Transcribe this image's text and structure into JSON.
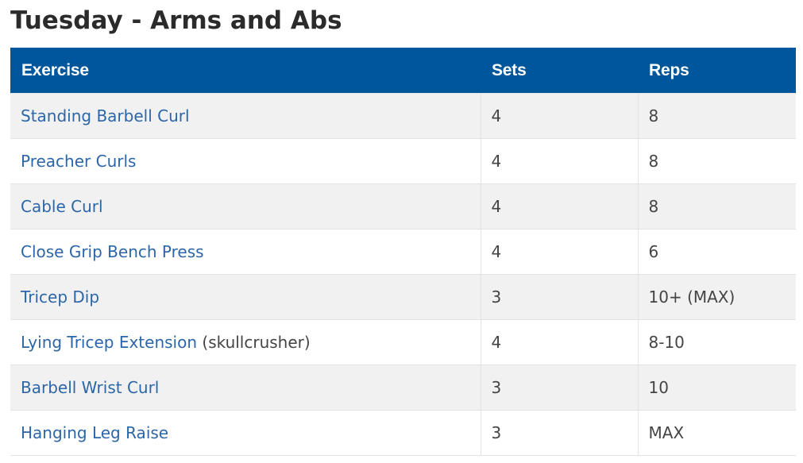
{
  "title": "Tuesday - Arms and Abs",
  "table": {
    "headers": {
      "exercise": "Exercise",
      "sets": "Sets",
      "reps": "Reps"
    },
    "rows": [
      {
        "exercise": "Standing Barbell Curl",
        "exercise_suffix": "",
        "sets": "4",
        "reps": "8"
      },
      {
        "exercise": "Preacher Curls",
        "exercise_suffix": "",
        "sets": "4",
        "reps": "8"
      },
      {
        "exercise": "Cable Curl",
        "exercise_suffix": "",
        "sets": "4",
        "reps": "8"
      },
      {
        "exercise": "Close Grip Bench Press",
        "exercise_suffix": "",
        "sets": "4",
        "reps": "6"
      },
      {
        "exercise": "Tricep Dip",
        "exercise_suffix": "",
        "sets": "3",
        "reps": "10+ (MAX)"
      },
      {
        "exercise": "Lying Tricep Extension",
        "exercise_suffix": " (skullcrusher)",
        "sets": "4",
        "reps": "8-10"
      },
      {
        "exercise": "Barbell Wrist Curl",
        "exercise_suffix": "",
        "sets": "3",
        "reps": "10"
      },
      {
        "exercise": "Hanging Leg Raise",
        "exercise_suffix": "",
        "sets": "3",
        "reps": "MAX"
      }
    ]
  },
  "colors": {
    "header_bg": "#00569b",
    "link": "#2c66a8",
    "row_alt": "#f1f1f1",
    "text": "#444444"
  }
}
